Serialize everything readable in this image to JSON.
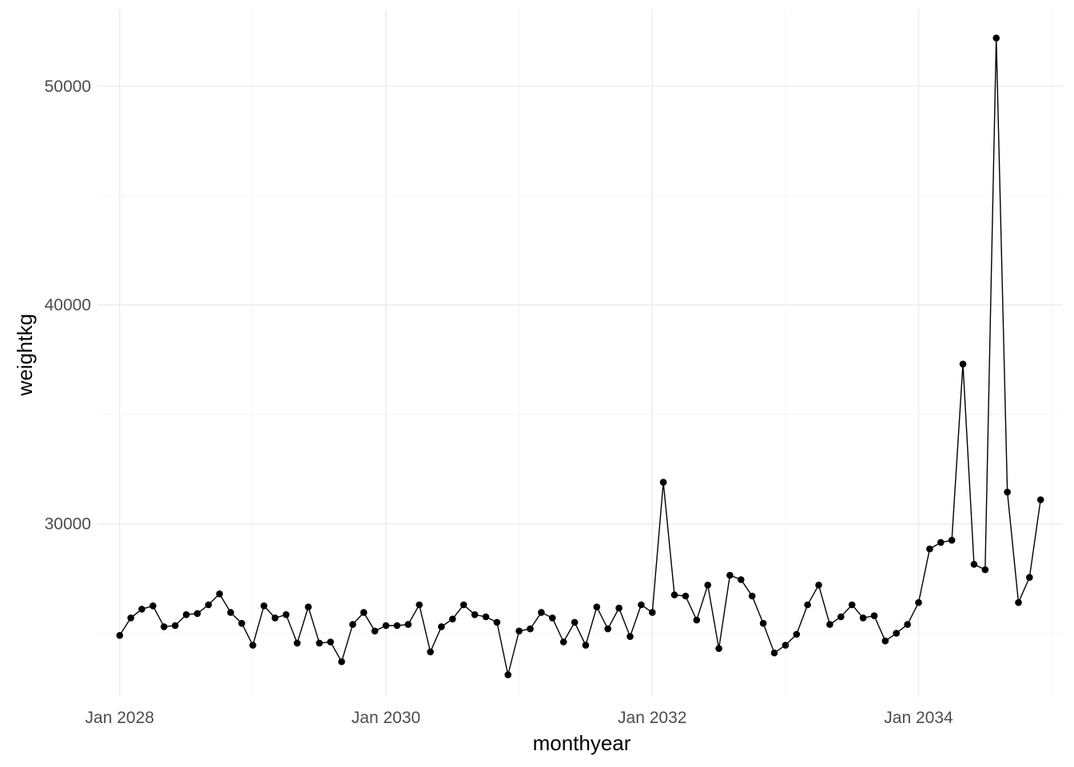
{
  "chart_data": {
    "type": "line",
    "markers": true,
    "xlabel": "monthyear",
    "ylabel": "weightkg",
    "x_scale": "date",
    "x_ticks": [
      "2028-01",
      "2030-01",
      "2032-01",
      "2034-01"
    ],
    "x_tick_labels": [
      "Jan 2028",
      "Jan 2030",
      "Jan 2032",
      "Jan 2034"
    ],
    "y_ticks": [
      30000,
      40000,
      50000
    ],
    "y_tick_labels": [
      "30000",
      "40000",
      "50000"
    ],
    "xlim": [
      "2027-11",
      "2035-02"
    ],
    "ylim": [
      22100,
      53500
    ],
    "grid": true,
    "line_color": "#000000",
    "point_color": "#000000",
    "grid_color": "#ebebeb",
    "series": [
      {
        "x": [
          "2028-01",
          "2028-02",
          "2028-03",
          "2028-04",
          "2028-05",
          "2028-06",
          "2028-07",
          "2028-08",
          "2028-09",
          "2028-10",
          "2028-11",
          "2028-12",
          "2029-01",
          "2029-02",
          "2029-03",
          "2029-04",
          "2029-05",
          "2029-06",
          "2029-07",
          "2029-08",
          "2029-09",
          "2029-10",
          "2029-11",
          "2029-12",
          "2030-01",
          "2030-02",
          "2030-03",
          "2030-04",
          "2030-05",
          "2030-06",
          "2030-07",
          "2030-08",
          "2030-09",
          "2030-10",
          "2030-11",
          "2030-12",
          "2031-01",
          "2031-02",
          "2031-03",
          "2031-04",
          "2031-05",
          "2031-06",
          "2031-07",
          "2031-08",
          "2031-09",
          "2031-10",
          "2031-11",
          "2031-12",
          "2032-01",
          "2032-02",
          "2032-03",
          "2032-04",
          "2032-05",
          "2032-06",
          "2032-07",
          "2032-08",
          "2032-09",
          "2032-10",
          "2032-11",
          "2032-12",
          "2033-01",
          "2033-02",
          "2033-03",
          "2033-04",
          "2033-05",
          "2033-06",
          "2033-07",
          "2033-08",
          "2033-09",
          "2033-10",
          "2033-11",
          "2033-12",
          "2034-01",
          "2034-02",
          "2034-03",
          "2034-04",
          "2034-05",
          "2034-06",
          "2034-07",
          "2034-08",
          "2034-09",
          "2034-10",
          "2034-11",
          "2034-12"
        ],
        "y": [
          24900,
          25700,
          26100,
          26250,
          25300,
          25350,
          25850,
          25900,
          26300,
          26800,
          25950,
          25450,
          24450,
          26250,
          25700,
          25850,
          24550,
          26200,
          24550,
          24600,
          23700,
          25400,
          25950,
          25100,
          25350,
          25350,
          25400,
          26300,
          24150,
          25300,
          25650,
          26300,
          25850,
          25750,
          25500,
          23100,
          25100,
          25200,
          25950,
          25700,
          24600,
          25500,
          24450,
          26200,
          25200,
          26150,
          24850,
          26300,
          25950,
          31900,
          26750,
          26700,
          25600,
          27200,
          24300,
          27650,
          27450,
          26700,
          25450,
          24100,
          24450,
          24950,
          26300,
          27200,
          25400,
          25750,
          26300,
          25700,
          25800,
          24650,
          25000,
          25400,
          26400,
          28850,
          29150,
          29250,
          37300,
          28150,
          27900,
          52200,
          31450,
          26400,
          27550,
          31100
        ]
      }
    ]
  }
}
